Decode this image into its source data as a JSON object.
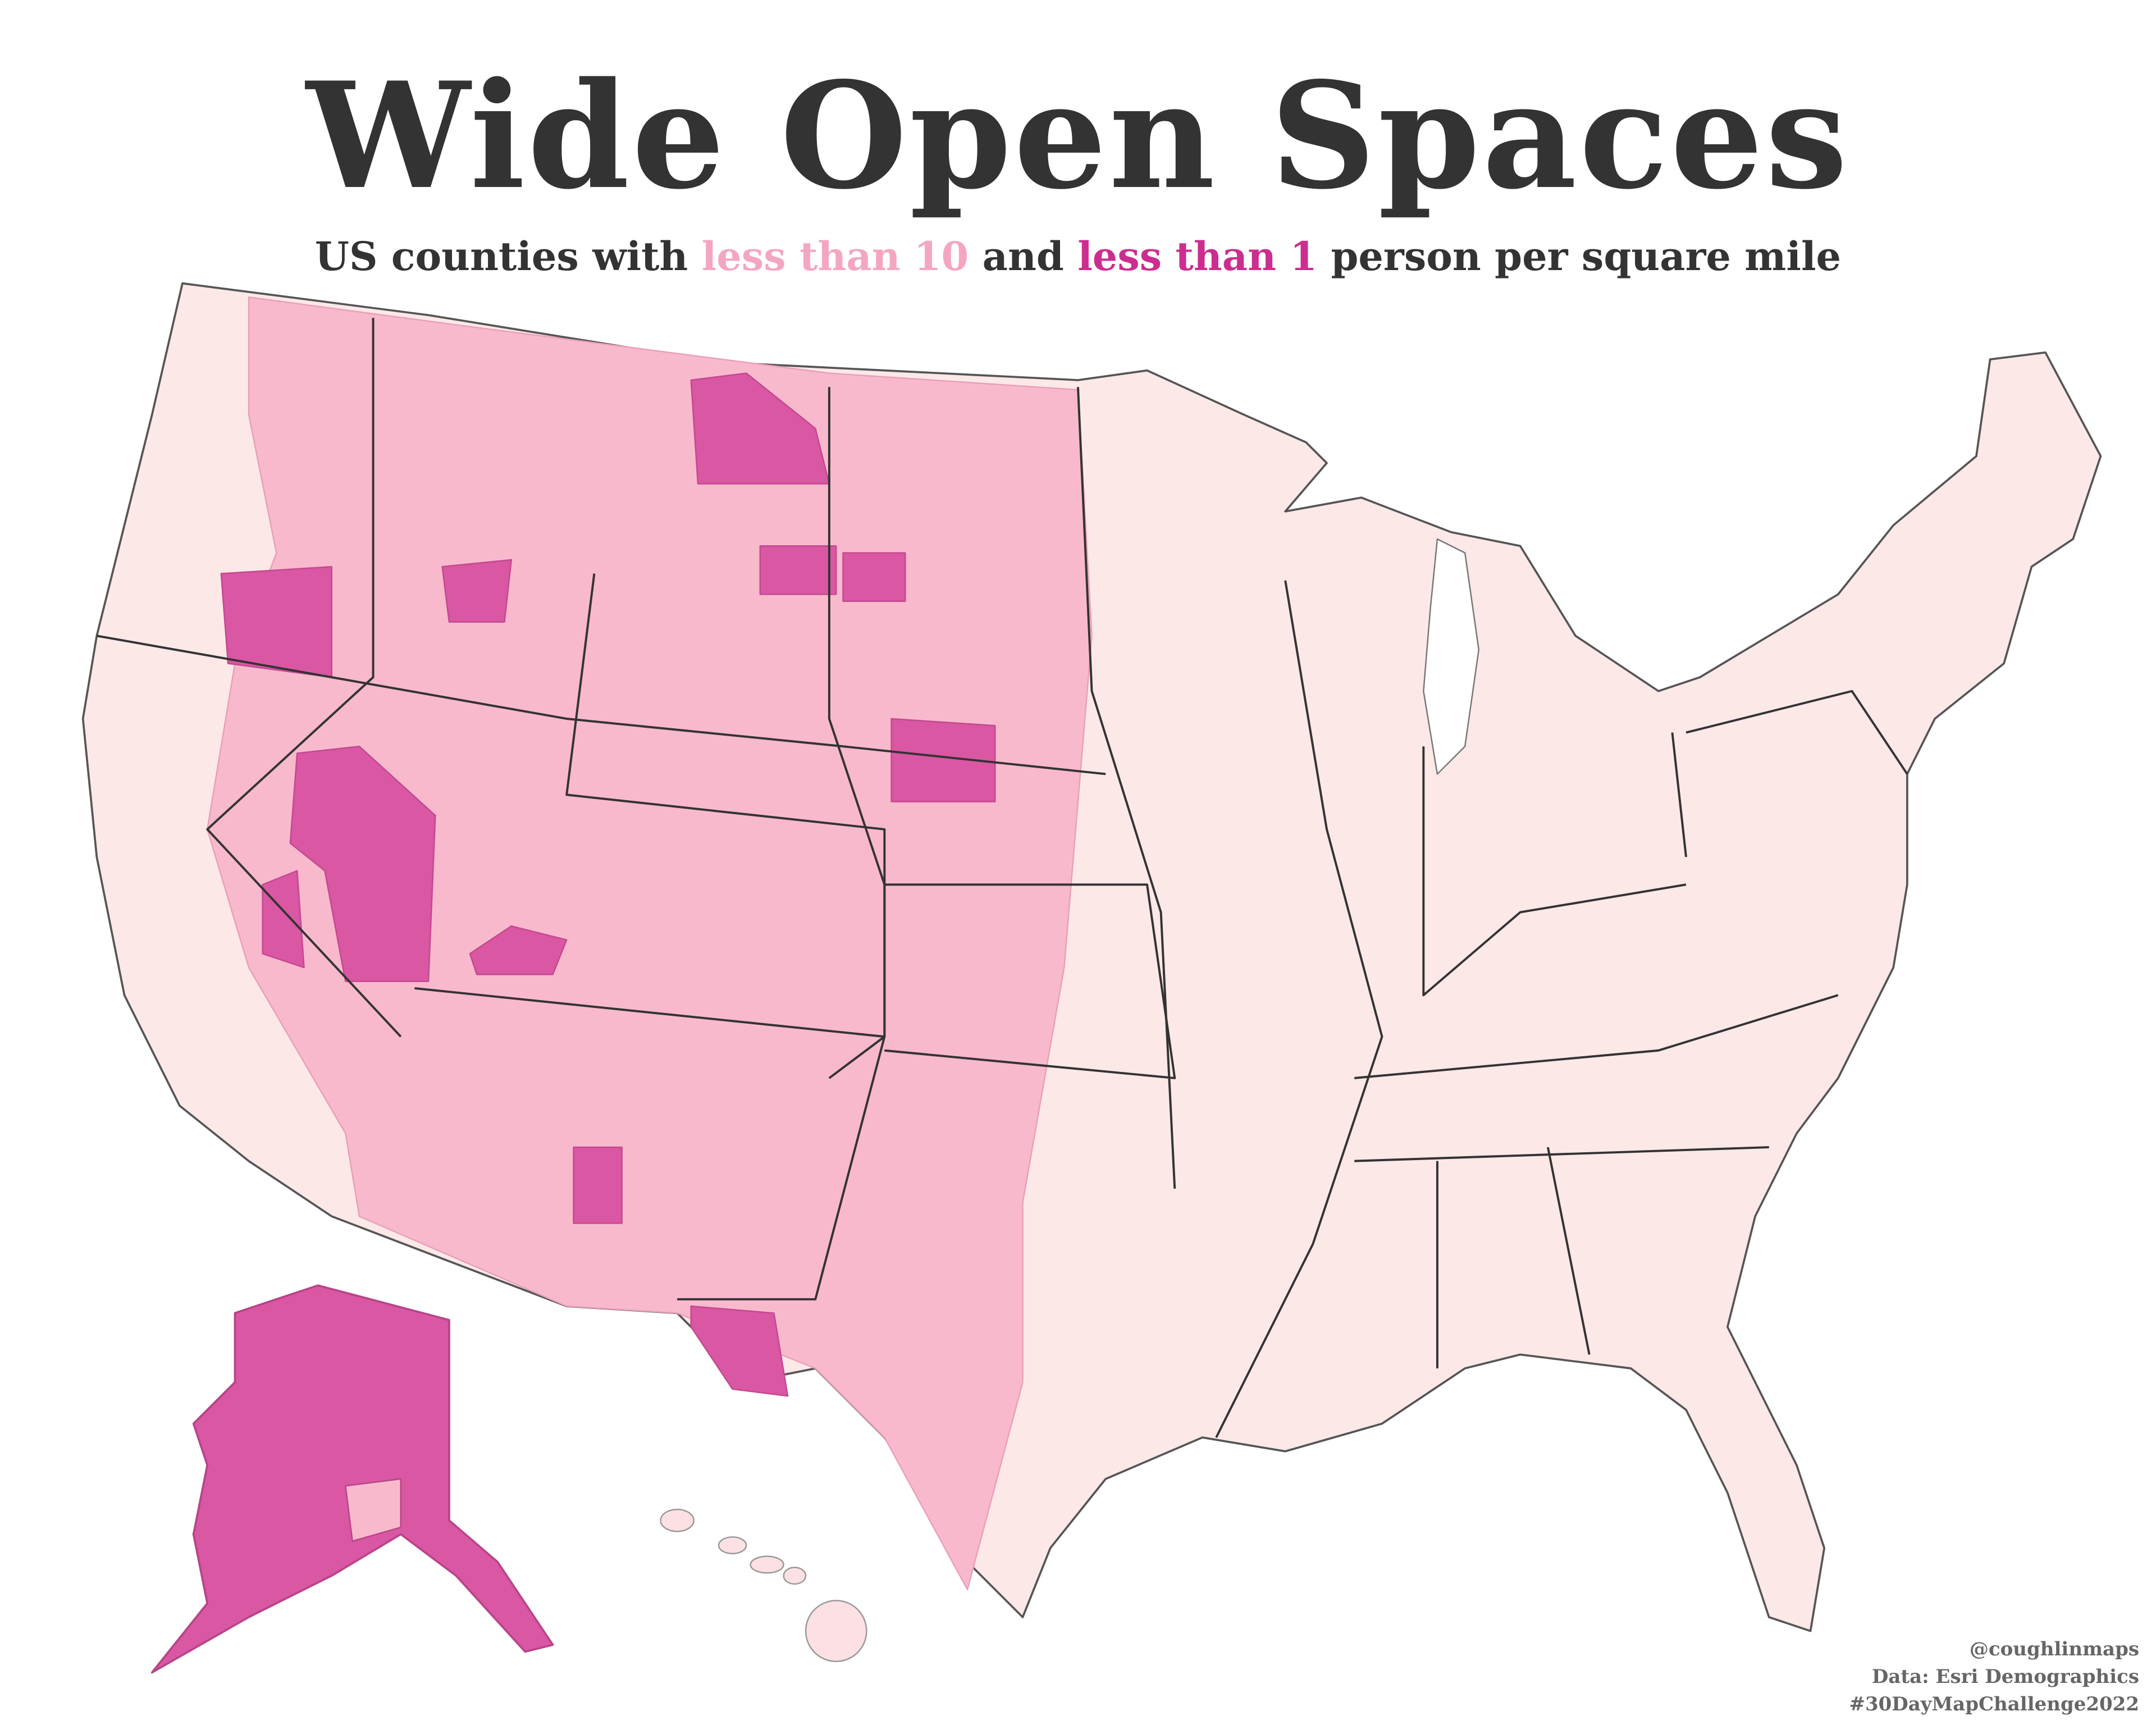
{
  "header": {
    "title": "Wide Open Spaces",
    "subtitle": [
      "US counties with",
      "less than 10",
      "and",
      "less than 1",
      "person per square mile"
    ]
  },
  "credits": [
    "@coughlinmaps",
    "Data: Esri Demographics",
    "#30DayMapChallenge2022"
  ]
}
